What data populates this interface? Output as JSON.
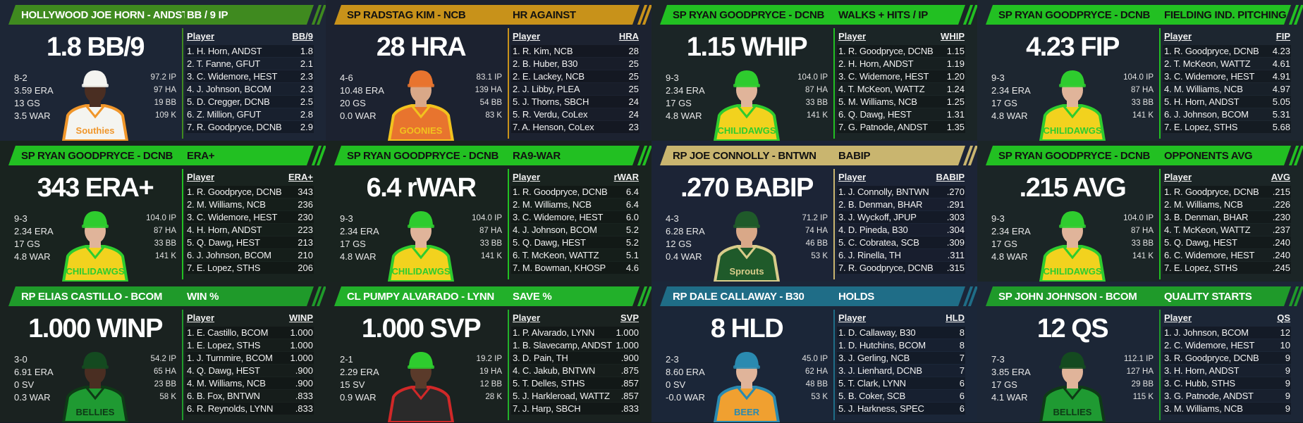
{
  "panels": [
    {
      "name": "HOLLYWOOD JOE HORN - ANDST",
      "stat": "BB / 9 IP",
      "big": "1.8 BB/9",
      "record": [
        "8-2",
        "3.59 ERA",
        "13 GS",
        "3.5 WAR"
      ],
      "totals": [
        "97.2 IP",
        "97 HA",
        "19 BB",
        "109 K"
      ],
      "col": "BB/9",
      "rows": [
        [
          "1. H. Horn, ANDST",
          "1.8"
        ],
        [
          "2. T. Fanne, GFUT",
          "2.1"
        ],
        [
          "3. C. Widemore, HEST",
          "2.3"
        ],
        [
          "4. J. Johnson, BCOM",
          "2.3"
        ],
        [
          "5. D. Cregger, DCNB",
          "2.5"
        ],
        [
          "6. Z. Million, GFUT",
          "2.8"
        ],
        [
          "7. R. Goodpryce, DCNB",
          "2.9"
        ]
      ],
      "colors": {
        "header": "#3f8a1f",
        "header_text": "#ffffff",
        "bg": "#1d2636",
        "jersey": "#f4f4f0",
        "trim": "#f0962a",
        "cap": "#f4f4f0",
        "skin": "#4a2e22"
      },
      "jersey_text": "Southies"
    },
    {
      "name": "SP RADSTAG KIM - NCB",
      "stat": "HR AGAINST",
      "big": "28 HRA",
      "record": [
        "4-6",
        "10.48 ERA",
        "20 GS",
        "0.0 WAR"
      ],
      "totals": [
        "83.1 IP",
        "139 HA",
        "54 BB",
        "83 K"
      ],
      "col": "HRA",
      "rows": [
        [
          "1. R. Kim, NCB",
          "28"
        ],
        [
          "2. B. Huber, B30",
          "25"
        ],
        [
          "2. E. Lackey, NCB",
          "25"
        ],
        [
          "2. J. Libby, PLEA",
          "25"
        ],
        [
          "5. J. Thorns, SBCH",
          "24"
        ],
        [
          "5. R. Verdu, CoLex",
          "24"
        ],
        [
          "7. A. Henson, CoLex",
          "23"
        ]
      ],
      "colors": {
        "header": "#c8921a",
        "header_text": "#111111",
        "bg": "#1c2230",
        "jersey": "#e8742e",
        "trim": "#f2c21e",
        "cap": "#e8742e",
        "skin": "#d9a888"
      },
      "jersey_text": "GOONIES"
    },
    {
      "name": "SP RYAN GOODPRYCE - DCNB",
      "stat": "WALKS + HITS / IP",
      "big": "1.15 WHIP",
      "record": [
        "9-3",
        "2.34 ERA",
        "17 GS",
        "4.8 WAR"
      ],
      "totals": [
        "104.0 IP",
        "87 HA",
        "33 BB",
        "141 K"
      ],
      "col": "WHIP",
      "rows": [
        [
          "1. R. Goodpryce, DCNB",
          "1.15"
        ],
        [
          "2. H. Horn, ANDST",
          "1.19"
        ],
        [
          "3. C. Widemore, HEST",
          "1.20"
        ],
        [
          "4. T. McKeon, WATTZ",
          "1.24"
        ],
        [
          "5. M. Williams, NCB",
          "1.25"
        ],
        [
          "6. Q. Dawg, HEST",
          "1.31"
        ],
        [
          "7. G. Patnode, ANDST",
          "1.35"
        ]
      ],
      "colors": {
        "header": "#22c022",
        "header_text": "#111111",
        "bg": "#1b2526",
        "jersey": "#f2d21e",
        "trim": "#2ecc2e",
        "cap": "#2ecc2e",
        "skin": "#e0b49a"
      },
      "jersey_text": "CHILIDAWGS"
    },
    {
      "name": "SP RYAN GOODPRYCE - DCNB",
      "stat": "FIELDING IND. PITCHING",
      "big": "4.23 FIP",
      "record": [
        "9-3",
        "2.34 ERA",
        "17 GS",
        "4.8 WAR"
      ],
      "totals": [
        "104.0 IP",
        "87 HA",
        "33 BB",
        "141 K"
      ],
      "col": "FIP",
      "rows": [
        [
          "1. R. Goodpryce, DCNB",
          "4.23"
        ],
        [
          "2. T. McKeon, WATTZ",
          "4.61"
        ],
        [
          "3. C. Widemore, HEST",
          "4.91"
        ],
        [
          "4. M. Williams, NCB",
          "4.97"
        ],
        [
          "5. H. Horn, ANDST",
          "5.05"
        ],
        [
          "6. J. Johnson, BCOM",
          "5.31"
        ],
        [
          "7. E. Lopez, STHS",
          "5.68"
        ]
      ],
      "colors": {
        "header": "#22c022",
        "header_text": "#111111",
        "bg": "#1d2630",
        "jersey": "#f2d21e",
        "trim": "#2ecc2e",
        "cap": "#2ecc2e",
        "skin": "#e0b49a"
      },
      "jersey_text": "CHILIDAWGS"
    },
    {
      "name": "SP RYAN GOODPRYCE - DCNB",
      "stat": "ERA+",
      "big": "343 ERA+",
      "record": [
        "9-3",
        "2.34 ERA",
        "17 GS",
        "4.8 WAR"
      ],
      "totals": [
        "104.0 IP",
        "87 HA",
        "33 BB",
        "141 K"
      ],
      "col": "ERA+",
      "rows": [
        [
          "1. R. Goodpryce, DCNB",
          "343"
        ],
        [
          "2. M. Williams, NCB",
          "236"
        ],
        [
          "3. C. Widemore, HEST",
          "230"
        ],
        [
          "4. H. Horn, ANDST",
          "223"
        ],
        [
          "5. Q. Dawg, HEST",
          "213"
        ],
        [
          "6. J. Johnson, BCOM",
          "210"
        ],
        [
          "7. E. Lopez, STHS",
          "206"
        ]
      ],
      "colors": {
        "header": "#22c022",
        "header_text": "#111111",
        "bg": "#19231f",
        "jersey": "#f2d21e",
        "trim": "#2ecc2e",
        "cap": "#2ecc2e",
        "skin": "#e0b49a"
      },
      "jersey_text": "CHILIDAWGS"
    },
    {
      "name": "SP RYAN GOODPRYCE - DCNB",
      "stat": "RA9-WAR",
      "big": "6.4 rWAR",
      "record": [
        "9-3",
        "2.34 ERA",
        "17 GS",
        "4.8 WAR"
      ],
      "totals": [
        "104.0 IP",
        "87 HA",
        "33 BB",
        "141 K"
      ],
      "col": "rWAR",
      "rows": [
        [
          "1. R. Goodpryce, DCNB",
          "6.4"
        ],
        [
          "2. M. Williams, NCB",
          "6.4"
        ],
        [
          "3. C. Widemore, HEST",
          "6.0"
        ],
        [
          "4. J. Johnson, BCOM",
          "5.2"
        ],
        [
          "5. Q. Dawg, HEST",
          "5.2"
        ],
        [
          "6. T. McKeon, WATTZ",
          "5.1"
        ],
        [
          "7. M. Bowman, KHOSP",
          "4.6"
        ]
      ],
      "colors": {
        "header": "#22c022",
        "header_text": "#111111",
        "bg": "#19231f",
        "jersey": "#f2d21e",
        "trim": "#2ecc2e",
        "cap": "#2ecc2e",
        "skin": "#e0b49a"
      },
      "jersey_text": "CHILIDAWGS"
    },
    {
      "name": "RP JOE CONNOLLY - BNTWN",
      "stat": "BABIP",
      "big": ".270 BABIP",
      "record": [
        "4-3",
        "6.28 ERA",
        "12 GS",
        "0.4 WAR"
      ],
      "totals": [
        "71.2 IP",
        "74 HA",
        "46 BB",
        "53 K"
      ],
      "col": "BABIP",
      "rows": [
        [
          "1. J. Connolly, BNTWN",
          ".270"
        ],
        [
          "2. B. Denman, BHAR",
          ".291"
        ],
        [
          "3. J. Wyckoff, JPUP",
          ".303"
        ],
        [
          "4. D. Pineda, B30",
          ".304"
        ],
        [
          "5. C. Cobratea, SCB",
          ".309"
        ],
        [
          "6. J. Rinella, TH",
          ".311"
        ],
        [
          "7. R. Goodpryce, DCNB",
          ".315"
        ]
      ],
      "colors": {
        "header": "#c9b56f",
        "header_text": "#111111",
        "bg": "#1c2436",
        "jersey": "#1f5a2a",
        "trim": "#d8cc8a",
        "cap": "#1f5a2a",
        "skin": "#d9a888"
      },
      "jersey_text": "Sprouts"
    },
    {
      "name": "SP RYAN GOODPRYCE - DCNB",
      "stat": "OPPONENTS AVG",
      "big": ".215 AVG",
      "record": [
        "9-3",
        "2.34 ERA",
        "17 GS",
        "4.8 WAR"
      ],
      "totals": [
        "104.0 IP",
        "87 HA",
        "33 BB",
        "141 K"
      ],
      "col": "AVG",
      "rows": [
        [
          "1. R. Goodpryce, DCNB",
          ".215"
        ],
        [
          "2. M. Williams, NCB",
          ".226"
        ],
        [
          "3. B. Denman, BHAR",
          ".230"
        ],
        [
          "4. T. McKeon, WATTZ",
          ".237"
        ],
        [
          "5. Q. Dawg, HEST",
          ".240"
        ],
        [
          "6. C. Widemore, HEST",
          ".240"
        ],
        [
          "7. E. Lopez, STHS",
          ".245"
        ]
      ],
      "colors": {
        "header": "#22c022",
        "header_text": "#111111",
        "bg": "#1b2526",
        "jersey": "#f2d21e",
        "trim": "#2ecc2e",
        "cap": "#2ecc2e",
        "skin": "#e0b49a"
      },
      "jersey_text": "CHILIDAWGS"
    },
    {
      "name": "RP ELIAS CASTILLO - BCOM",
      "stat": "WIN %",
      "big": "1.000 WINP",
      "record": [
        "3-0",
        "6.91 ERA",
        "0 SV",
        "0.3 WAR"
      ],
      "totals": [
        "54.2 IP",
        "65 HA",
        "23 BB",
        "58 K"
      ],
      "col": "WINP",
      "rows": [
        [
          "1. E. Castillo, BCOM",
          "1.000"
        ],
        [
          "1. E. Lopez, STHS",
          "1.000"
        ],
        [
          "1. J. Turnmire, BCOM",
          "1.000"
        ],
        [
          "4. Q. Dawg, HEST",
          ".900"
        ],
        [
          "4. M. Williams, NCB",
          ".900"
        ],
        [
          "6. B. Fox, BNTWN",
          ".833"
        ],
        [
          "6. R. Reynolds, LYNN",
          ".833"
        ]
      ],
      "colors": {
        "header": "#1f9a2a",
        "header_text": "#ffffff",
        "bg": "#1a2220",
        "jersey": "#1f9a32",
        "trim": "#0e3a16",
        "cap": "#144a20",
        "skin": "#4a2e22"
      },
      "jersey_text": "BELLIES"
    },
    {
      "name": "CL PUMPY ALVARADO - LYNN",
      "stat": "SAVE %",
      "big": "1.000 SVP",
      "record": [
        "2-1",
        "2.29 ERA",
        "15 SV",
        "0.9 WAR"
      ],
      "totals": [
        "19.2 IP",
        "19 HA",
        "12 BB",
        "28 K"
      ],
      "col": "SVP",
      "rows": [
        [
          "1. P. Alvarado, LYNN",
          "1.000"
        ],
        [
          "1. B. Slavecamp, ANDST",
          "1.000"
        ],
        [
          "3. D. Pain, TH",
          ".900"
        ],
        [
          "4. C. Jakub, BNTWN",
          ".875"
        ],
        [
          "5. T. Delles, STHS",
          ".857"
        ],
        [
          "5. J. Harkleroad, WATTZ",
          ".857"
        ],
        [
          "7. J. Harp, SBCH",
          ".833"
        ]
      ],
      "colors": {
        "header": "#22b02a",
        "header_text": "#ffffff",
        "bg": "#1a2220",
        "jersey": "#2a2a2a",
        "trim": "#d02828",
        "cap": "#2ecc2e",
        "skin": "#5a3a2a"
      },
      "jersey_text": ""
    },
    {
      "name": "RP DALE CALLAWAY - B30",
      "stat": "HOLDS",
      "big": "8 HLD",
      "record": [
        "2-3",
        "8.60 ERA",
        "0 SV",
        "-0.0 WAR"
      ],
      "totals": [
        "45.0 IP",
        "62 HA",
        "48 BB",
        "53 K"
      ],
      "col": "HLD",
      "rows": [
        [
          "1. D. Callaway, B30",
          "8"
        ],
        [
          "1. D. Hutchins, BCOM",
          "8"
        ],
        [
          "3. J. Gerling, NCB",
          "7"
        ],
        [
          "3. J. Lienhard, DCNB",
          "7"
        ],
        [
          "5. T. Clark, LYNN",
          "6"
        ],
        [
          "5. B. Coker, SCB",
          "6"
        ],
        [
          "5. J. Harkness, SPEC",
          "6"
        ]
      ],
      "colors": {
        "header": "#1f6d87",
        "header_text": "#ffffff",
        "bg": "#1b2638",
        "jersey": "#f0a030",
        "trim": "#2a8ab0",
        "cap": "#2a8ab0",
        "skin": "#e0b49a"
      },
      "jersey_text": "BEER"
    },
    {
      "name": "SP JOHN JOHNSON - BCOM",
      "stat": "QUALITY STARTS",
      "big": "12 QS",
      "record": [
        "7-3",
        "3.85 ERA",
        "17 GS",
        "4.1 WAR"
      ],
      "totals": [
        "112.1 IP",
        "127 HA",
        "29 BB",
        "115 K"
      ],
      "col": "QS",
      "rows": [
        [
          "1. J. Johnson, BCOM",
          "12"
        ],
        [
          "2. C. Widemore, HEST",
          "10"
        ],
        [
          "3. R. Goodpryce, DCNB",
          "9"
        ],
        [
          "3. H. Horn, ANDST",
          "9"
        ],
        [
          "3. C. Hubb, STHS",
          "9"
        ],
        [
          "3. G. Patnode, ANDST",
          "9"
        ],
        [
          "3. M. Williams, NCB",
          "9"
        ]
      ],
      "colors": {
        "header": "#1f9a2a",
        "header_text": "#ffffff",
        "bg": "#1c2636",
        "jersey": "#1f9a32",
        "trim": "#0e3a16",
        "cap": "#144a20",
        "skin": "#e0b49a"
      },
      "jersey_text": "BELLIES"
    }
  ],
  "labels": {
    "player_col": "Player"
  }
}
